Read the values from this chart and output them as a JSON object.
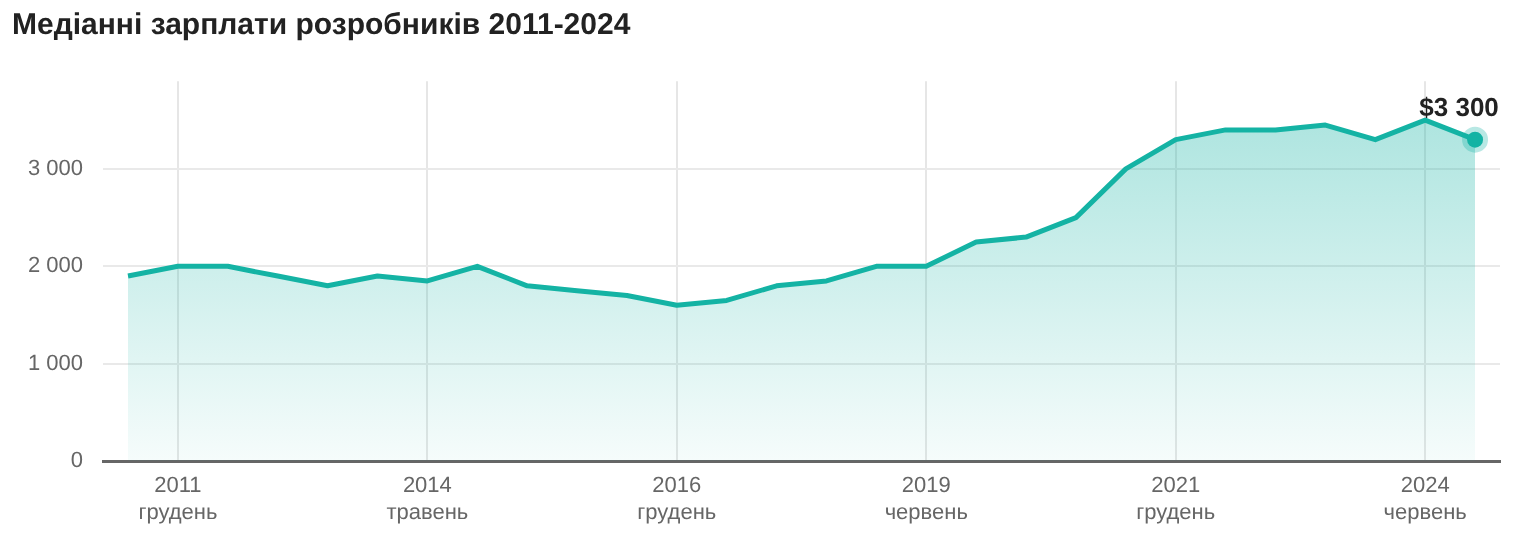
{
  "chart_data": {
    "type": "area",
    "title": "Медіанні зарплати розробників 2011-2024",
    "categories": [
      null,
      "2011\nгрудень",
      null,
      null,
      null,
      null,
      "2014\nтравень",
      null,
      null,
      null,
      null,
      "2016\nгрудень",
      null,
      null,
      null,
      null,
      "2019\nчервень",
      null,
      null,
      null,
      null,
      "2021\nгрудень",
      null,
      null,
      null,
      null,
      "2024\nчервень",
      null
    ],
    "series": [
      {
        "color": "#14b3a4",
        "values": [
          1900,
          2000,
          2000,
          1900,
          1800,
          1900,
          1850,
          2000,
          1800,
          1750,
          1700,
          1600,
          1650,
          1800,
          1850,
          2000,
          2000,
          2250,
          2300,
          2500,
          3000,
          3300,
          3400,
          3400,
          3450,
          3300,
          3500,
          3300
        ],
        "value_labels": [
          null,
          null,
          null,
          null,
          null,
          null,
          null,
          null,
          null,
          null,
          null,
          null,
          null,
          null,
          null,
          null,
          null,
          null,
          null,
          null,
          null,
          null,
          null,
          null,
          null,
          null,
          null,
          "$3 300"
        ]
      }
    ],
    "ylim": [
      0,
      3900
    ],
    "yticks": [
      {
        "value": 0,
        "label": "0"
      },
      {
        "value": 1000,
        "label": "1 000"
      },
      {
        "value": 2000,
        "label": "2 000"
      },
      {
        "value": 3000,
        "label": "3 000"
      }
    ],
    "grid": true,
    "legend": false
  }
}
